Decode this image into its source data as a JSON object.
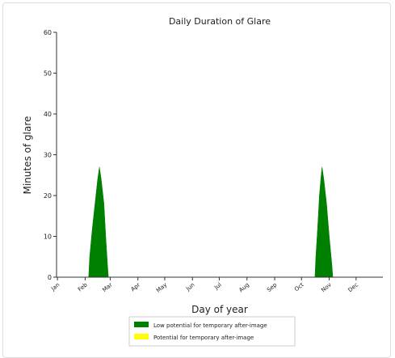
{
  "chart_data": {
    "type": "area",
    "title": "Daily Duration of Glare",
    "xlabel": "Day of year",
    "ylabel": "Minutes of glare",
    "xlim": [
      0,
      365
    ],
    "ylim": [
      0,
      60
    ],
    "yticks": [
      0,
      10,
      20,
      30,
      40,
      50,
      60
    ],
    "xticks": [
      {
        "value": 1,
        "label": "Jan"
      },
      {
        "value": 32,
        "label": "Feb"
      },
      {
        "value": 60,
        "label": "Mar"
      },
      {
        "value": 91,
        "label": "Apr"
      },
      {
        "value": 121,
        "label": "May"
      },
      {
        "value": 152,
        "label": "Jun"
      },
      {
        "value": 182,
        "label": "Jul"
      },
      {
        "value": 213,
        "label": "Aug"
      },
      {
        "value": 244,
        "label": "Sep"
      },
      {
        "value": 274,
        "label": "Oct"
      },
      {
        "value": 305,
        "label": "Nov"
      },
      {
        "value": 335,
        "label": "Dec"
      }
    ],
    "legend": "lower center",
    "series": [
      {
        "name": "Low potential for temporary after-image",
        "color": "#008000",
        "x": [
          1,
          36,
          37,
          40,
          43,
          46,
          48,
          50,
          53,
          55,
          57,
          58,
          289,
          290,
          292,
          294,
          296,
          297,
          299,
          302,
          305,
          308,
          309,
          365
        ],
        "values": [
          0,
          0,
          5,
          12,
          18,
          24,
          27,
          24,
          18,
          10,
          3,
          0,
          0,
          5,
          12,
          20,
          25,
          27,
          24,
          18,
          10,
          3,
          0,
          0
        ]
      },
      {
        "name": "Potential for temporary after-image",
        "color": "#ffff00",
        "x": [],
        "values": []
      }
    ]
  }
}
